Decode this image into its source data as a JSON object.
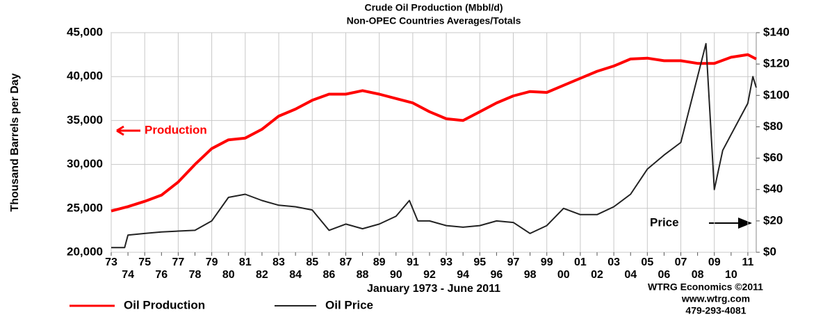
{
  "chart_data": {
    "type": "line",
    "title": "Crude Oil Production (Mbbl/d)",
    "subtitle": "Non-OPEC Countries Averages/Totals",
    "ylabel": "Thousand Barrels per Day",
    "xlabel": "January 1973 - June 2011",
    "credits": [
      "WTRG Economics  ©2011",
      "www.wtrg.com",
      "479-293-4081"
    ],
    "annotations": [
      {
        "text": "Production",
        "series": 0
      },
      {
        "text": "Price",
        "series": 1
      }
    ],
    "grid": true,
    "xlim": [
      1973,
      2011.5
    ],
    "xticks": [
      {
        "value": 1973,
        "label": "73"
      },
      {
        "value": 1974,
        "label": "74"
      },
      {
        "value": 1975,
        "label": "75"
      },
      {
        "value": 1976,
        "label": "76"
      },
      {
        "value": 1977,
        "label": "77"
      },
      {
        "value": 1978,
        "label": "78"
      },
      {
        "value": 1979,
        "label": "79"
      },
      {
        "value": 1980,
        "label": "80"
      },
      {
        "value": 1981,
        "label": "81"
      },
      {
        "value": 1982,
        "label": "82"
      },
      {
        "value": 1983,
        "label": "83"
      },
      {
        "value": 1984,
        "label": "84"
      },
      {
        "value": 1985,
        "label": "85"
      },
      {
        "value": 1986,
        "label": "86"
      },
      {
        "value": 1987,
        "label": "87"
      },
      {
        "value": 1988,
        "label": "88"
      },
      {
        "value": 1989,
        "label": "89"
      },
      {
        "value": 1990,
        "label": "90"
      },
      {
        "value": 1991,
        "label": "91"
      },
      {
        "value": 1992,
        "label": "92"
      },
      {
        "value": 1993,
        "label": "93"
      },
      {
        "value": 1994,
        "label": "94"
      },
      {
        "value": 1995,
        "label": "95"
      },
      {
        "value": 1996,
        "label": "96"
      },
      {
        "value": 1997,
        "label": "97"
      },
      {
        "value": 1998,
        "label": "98"
      },
      {
        "value": 1999,
        "label": "99"
      },
      {
        "value": 2000,
        "label": "00"
      },
      {
        "value": 2001,
        "label": "01"
      },
      {
        "value": 2002,
        "label": "02"
      },
      {
        "value": 2003,
        "label": "03"
      },
      {
        "value": 2004,
        "label": "04"
      },
      {
        "value": 2005,
        "label": "05"
      },
      {
        "value": 2006,
        "label": "06"
      },
      {
        "value": 2007,
        "label": "07"
      },
      {
        "value": 2008,
        "label": "08"
      },
      {
        "value": 2009,
        "label": "09"
      },
      {
        "value": 2010,
        "label": "10"
      },
      {
        "value": 2011,
        "label": "11"
      }
    ],
    "ylim": [
      20000,
      45000
    ],
    "yticks": [
      {
        "value": 20000,
        "label": "20,000"
      },
      {
        "value": 25000,
        "label": "25,000"
      },
      {
        "value": 30000,
        "label": "30,000"
      },
      {
        "value": 35000,
        "label": "35,000"
      },
      {
        "value": 40000,
        "label": "40,000"
      },
      {
        "value": 45000,
        "label": "45,000"
      }
    ],
    "y2lim": [
      0,
      140
    ],
    "y2ticks": [
      {
        "value": 0,
        "label": "$0"
      },
      {
        "value": 20,
        "label": "$20"
      },
      {
        "value": 40,
        "label": "$40"
      },
      {
        "value": 60,
        "label": "$60"
      },
      {
        "value": 80,
        "label": "$80"
      },
      {
        "value": 100,
        "label": "$100"
      },
      {
        "value": 120,
        "label": "$120"
      },
      {
        "value": 140,
        "label": "$140"
      }
    ],
    "series": [
      {
        "name": "Oil Production",
        "color": "#ff0000",
        "x": [
          1973,
          1974,
          1975,
          1976,
          1977,
          1978,
          1979,
          1980,
          1981,
          1982,
          1983,
          1984,
          1985,
          1986,
          1987,
          1988,
          1989,
          1990,
          1991,
          1992,
          1993,
          1994,
          1995,
          1996,
          1997,
          1998,
          1999,
          2000,
          2001,
          2002,
          2003,
          2004,
          2005,
          2006,
          2007,
          2008,
          2009,
          2010,
          2011,
          2011.5
        ],
        "values": [
          24700,
          25200,
          25800,
          26500,
          28000,
          30000,
          31800,
          32800,
          33000,
          34000,
          35500,
          36300,
          37300,
          38000,
          38000,
          38400,
          38000,
          37500,
          37000,
          36000,
          35200,
          35000,
          36000,
          37000,
          37800,
          38300,
          38200,
          39000,
          39800,
          40600,
          41200,
          42000,
          42100,
          41800,
          41800,
          41500,
          41500,
          42200,
          42500,
          42000
        ]
      },
      {
        "name": "Oil Price",
        "color": "#222222",
        "axis": "y2",
        "x": [
          1973,
          1973.8,
          1974,
          1975,
          1976,
          1977,
          1978,
          1979,
          1980,
          1981,
          1982,
          1983,
          1984,
          1985,
          1986,
          1987,
          1988,
          1989,
          1990,
          1990.8,
          1991.3,
          1992,
          1993,
          1994,
          1995,
          1996,
          1997,
          1998,
          1999,
          2000,
          2001,
          2002,
          2003,
          2004,
          2005,
          2006,
          2007,
          2008.5,
          2009,
          2009.5,
          2010,
          2011,
          2011.3,
          2011.5
        ],
        "values": [
          3,
          3,
          11,
          12,
          13,
          13.5,
          14,
          20,
          35,
          37,
          33,
          30,
          29,
          27,
          14,
          18,
          15,
          18,
          23,
          33,
          20,
          20,
          17,
          16,
          17,
          20,
          19,
          12,
          17,
          28,
          24,
          24,
          29,
          37,
          53,
          62,
          70,
          133,
          40,
          65,
          75,
          95,
          112,
          105
        ]
      }
    ]
  }
}
